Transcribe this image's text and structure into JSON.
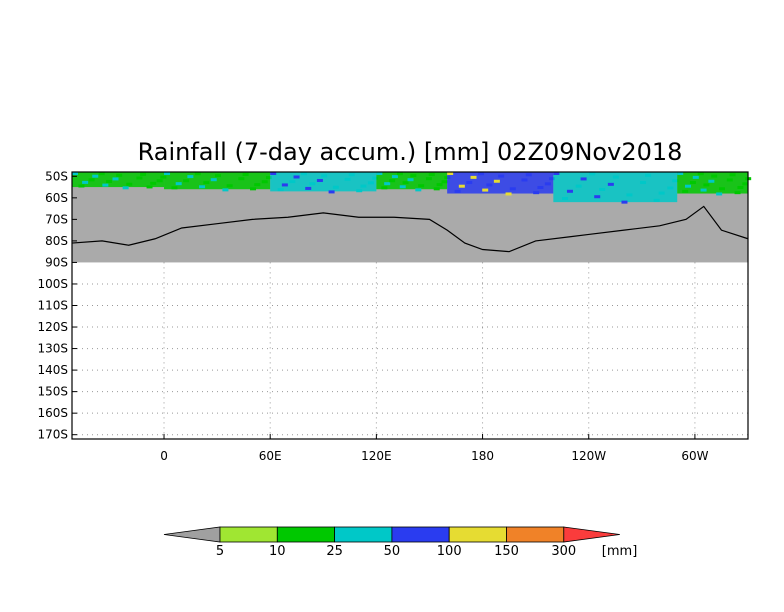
{
  "chart_data": {
    "type": "heatmap",
    "title": "Rainfall (7-day accum.) [mm] 02Z09Nov2018",
    "xlabel": "",
    "ylabel": "",
    "x_ticks": [
      "0",
      "60E",
      "120E",
      "180",
      "120W",
      "60W"
    ],
    "x_tick_lons": [
      0,
      60,
      120,
      180,
      240,
      300
    ],
    "xlim": [
      -52,
      330
    ],
    "y_ticks": [
      "50S",
      "60S",
      "70S",
      "80S",
      "90S",
      "100S",
      "110S",
      "120S",
      "130S",
      "140S",
      "150S",
      "160S",
      "170S"
    ],
    "y_tick_lats": [
      50,
      60,
      70,
      80,
      90,
      100,
      110,
      120,
      130,
      140,
      150,
      160,
      170
    ],
    "ylim": [
      48,
      172
    ],
    "data_lat_range": [
      48,
      90
    ],
    "grid": true,
    "colorbar": {
      "unit": "[mm]",
      "thresholds": [
        "5",
        "10",
        "25",
        "50",
        "100",
        "150",
        "300"
      ],
      "colors": [
        "#a0a0a0",
        "#a0e632",
        "#00c800",
        "#00c8c8",
        "#2a3cf0",
        "#e6dc32",
        "#f08228",
        "#fa3c3c"
      ]
    },
    "land_color": "#aaaaaa",
    "rain_bands": [
      {
        "lon": [
          -52,
          0
        ],
        "lat": [
          48,
          55
        ],
        "level": 2
      },
      {
        "lon": [
          0,
          60
        ],
        "lat": [
          48,
          56
        ],
        "level": 2
      },
      {
        "lon": [
          60,
          120
        ],
        "lat": [
          48,
          57
        ],
        "level": 3
      },
      {
        "lon": [
          120,
          160
        ],
        "lat": [
          48,
          56
        ],
        "level": 2
      },
      {
        "lon": [
          160,
          220
        ],
        "lat": [
          48,
          58
        ],
        "level": 4
      },
      {
        "lon": [
          220,
          290
        ],
        "lat": [
          48,
          62
        ],
        "level": 3
      },
      {
        "lon": [
          290,
          330
        ],
        "lat": [
          48,
          58
        ],
        "level": 2
      }
    ]
  }
}
